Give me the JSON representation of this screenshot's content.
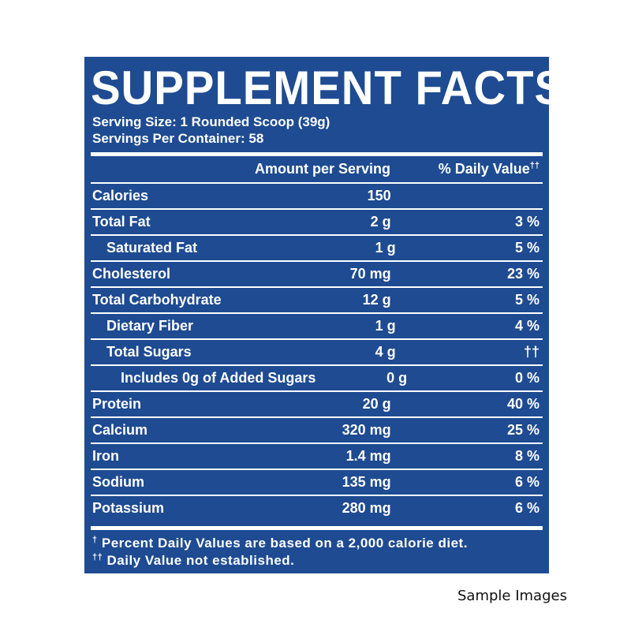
{
  "panel": {
    "title": "SUPPLEMENT FACTS",
    "serving_size": "Serving Size: 1 Rounded Scoop (39g)",
    "servings_per_container": "Servings Per Container: 58",
    "header": {
      "amount": "Amount per Serving",
      "daily_value": "% Daily Value",
      "daily_value_mark": "††"
    },
    "rows": [
      {
        "name": "Calories",
        "amount": "150",
        "dv": "",
        "indent": 0
      },
      {
        "name": "Total Fat",
        "amount": "2 g",
        "dv": "3 %",
        "indent": 0
      },
      {
        "name": "Saturated Fat",
        "amount": "1 g",
        "dv": "5 %",
        "indent": 1
      },
      {
        "name": "Cholesterol",
        "amount": "70 mg",
        "dv": "23 %",
        "indent": 0
      },
      {
        "name": "Total Carbohydrate",
        "amount": "12 g",
        "dv": "5 %",
        "indent": 0
      },
      {
        "name": "Dietary Fiber",
        "amount": "1 g",
        "dv": "4 %",
        "indent": 1
      },
      {
        "name": "Total Sugars",
        "amount": "4 g",
        "dv": "††",
        "indent": 1
      },
      {
        "name": "Includes 0g of Added Sugars",
        "amount": "0 g",
        "dv": "0 %",
        "indent": 2
      },
      {
        "name": "Protein",
        "amount": "20 g",
        "dv": "40 %",
        "indent": 0
      },
      {
        "name": "Calcium",
        "amount": "320 mg",
        "dv": "25 %",
        "indent": 0
      },
      {
        "name": "Iron",
        "amount": "1.4 mg",
        "dv": "8 %",
        "indent": 0
      },
      {
        "name": "Sodium",
        "amount": "135 mg",
        "dv": "6 %",
        "indent": 0
      },
      {
        "name": "Potassium",
        "amount": "280 mg",
        "dv": "6 %",
        "indent": 0
      }
    ],
    "footnote_1_mark": "†",
    "footnote_1": "Percent Daily Values are based on a 2,000 calorie diet.",
    "footnote_2_mark": "††",
    "footnote_2": "Daily Value not established."
  },
  "caption": "Sample Images",
  "colors": {
    "panel_bg": "#1e4b91",
    "text": "#ffffff"
  }
}
